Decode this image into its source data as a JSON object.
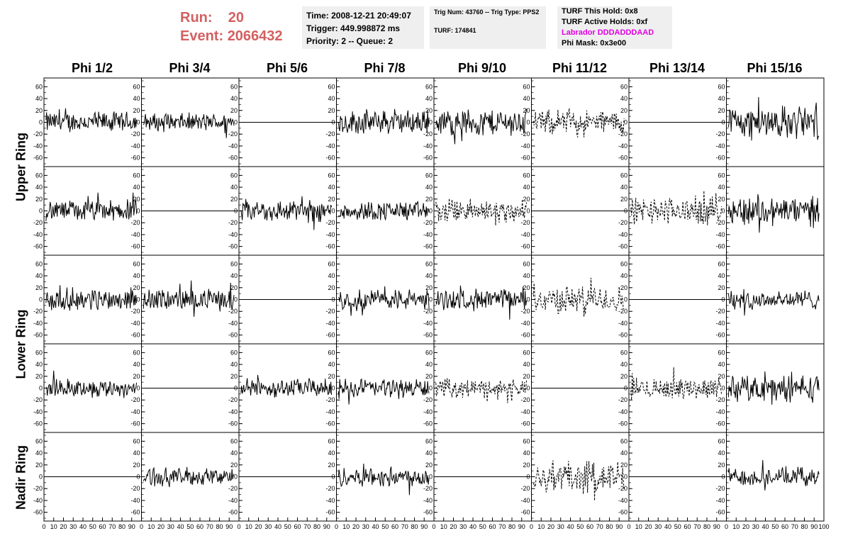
{
  "header": {
    "run_label": "Run:",
    "run_value": "20",
    "event_label": "Event:",
    "event_value": "2066432",
    "time": "Time: 2008-12-21 20:49:07",
    "trigger": "Trigger: 449.998872 ms",
    "priority": "Priority: 2 -- Queue: 2",
    "trig_num": "Trig Num: 43760 -- Trig Type: PPS2",
    "turf": "TURF: 174841",
    "turf_this_hold": "TURF This Hold: 0x8",
    "turf_active_holds": "TURF Active Holds: 0xf",
    "labrador": "Labrador DDDADDDAAD",
    "phi_mask": "Phi Mask: 0x3e00"
  },
  "colors": {
    "run_text": "#d46060",
    "labrador_text": "#e000e0",
    "box_bg": "#efefef"
  },
  "columns": [
    "Phi 1/2",
    "Phi 3/4",
    "Phi 5/6",
    "Phi 7/8",
    "Phi 9/10",
    "Phi 11/12",
    "Phi 13/14",
    "Phi 15/16"
  ],
  "ring_labels": [
    "Upper Ring",
    "Lower Ring",
    "Nadir Ring"
  ],
  "chart_data": {
    "type": "line",
    "x_range": [
      0,
      100
    ],
    "y_range": [
      -70,
      70
    ],
    "y_ticks": [
      -60,
      -40,
      -20,
      0,
      20,
      40,
      60
    ],
    "x_ticks": [
      0,
      10,
      20,
      30,
      40,
      50,
      60,
      70,
      80,
      90,
      100
    ],
    "grid": false,
    "legend": "none",
    "description_rows": 5,
    "panels": [
      [
        {
          "s": "solid",
          "a": 14
        },
        {
          "s": "solid",
          "a": 12
        },
        {
          "s": "flat",
          "a": 0
        },
        {
          "s": "solid",
          "a": 16
        },
        {
          "s": "solid",
          "a": 18
        },
        {
          "s": "dashed",
          "a": 16
        },
        {
          "s": "flat",
          "a": 0
        },
        {
          "s": "solid",
          "a": 22
        }
      ],
      [
        {
          "s": "solid",
          "a": 14
        },
        {
          "s": "flat",
          "a": 0
        },
        {
          "s": "solid",
          "a": 15
        },
        {
          "s": "solid",
          "a": 13
        },
        {
          "s": "dashed",
          "a": 16
        },
        {
          "s": "flat",
          "a": 0
        },
        {
          "s": "dashed",
          "a": 18
        },
        {
          "s": "solid",
          "a": 20
        }
      ],
      [
        {
          "s": "solid",
          "a": 15
        },
        {
          "s": "solid",
          "a": 14
        },
        {
          "s": "flat",
          "a": 0
        },
        {
          "s": "solid",
          "a": 14
        },
        {
          "s": "solid",
          "a": 14
        },
        {
          "s": "dashed",
          "a": 18
        },
        {
          "s": "flat",
          "a": 0
        },
        {
          "s": "solid",
          "a": 13
        }
      ],
      [
        {
          "s": "solid",
          "a": 12
        },
        {
          "s": "flat",
          "a": 0
        },
        {
          "s": "solid",
          "a": 12
        },
        {
          "s": "solid",
          "a": 13
        },
        {
          "s": "dashed",
          "a": 12
        },
        {
          "s": "flat",
          "a": 0
        },
        {
          "s": "dashed",
          "a": 14
        },
        {
          "s": "solid",
          "a": 18
        }
      ],
      [
        {
          "s": "flat",
          "a": 0
        },
        {
          "s": "solid",
          "a": 12
        },
        {
          "s": "flat",
          "a": 0
        },
        {
          "s": "solid",
          "a": 13
        },
        {
          "s": "flat",
          "a": 0
        },
        {
          "s": "dashed",
          "a": 22
        },
        {
          "s": "flat",
          "a": 0
        },
        {
          "s": "solid",
          "a": 12
        }
      ]
    ]
  }
}
